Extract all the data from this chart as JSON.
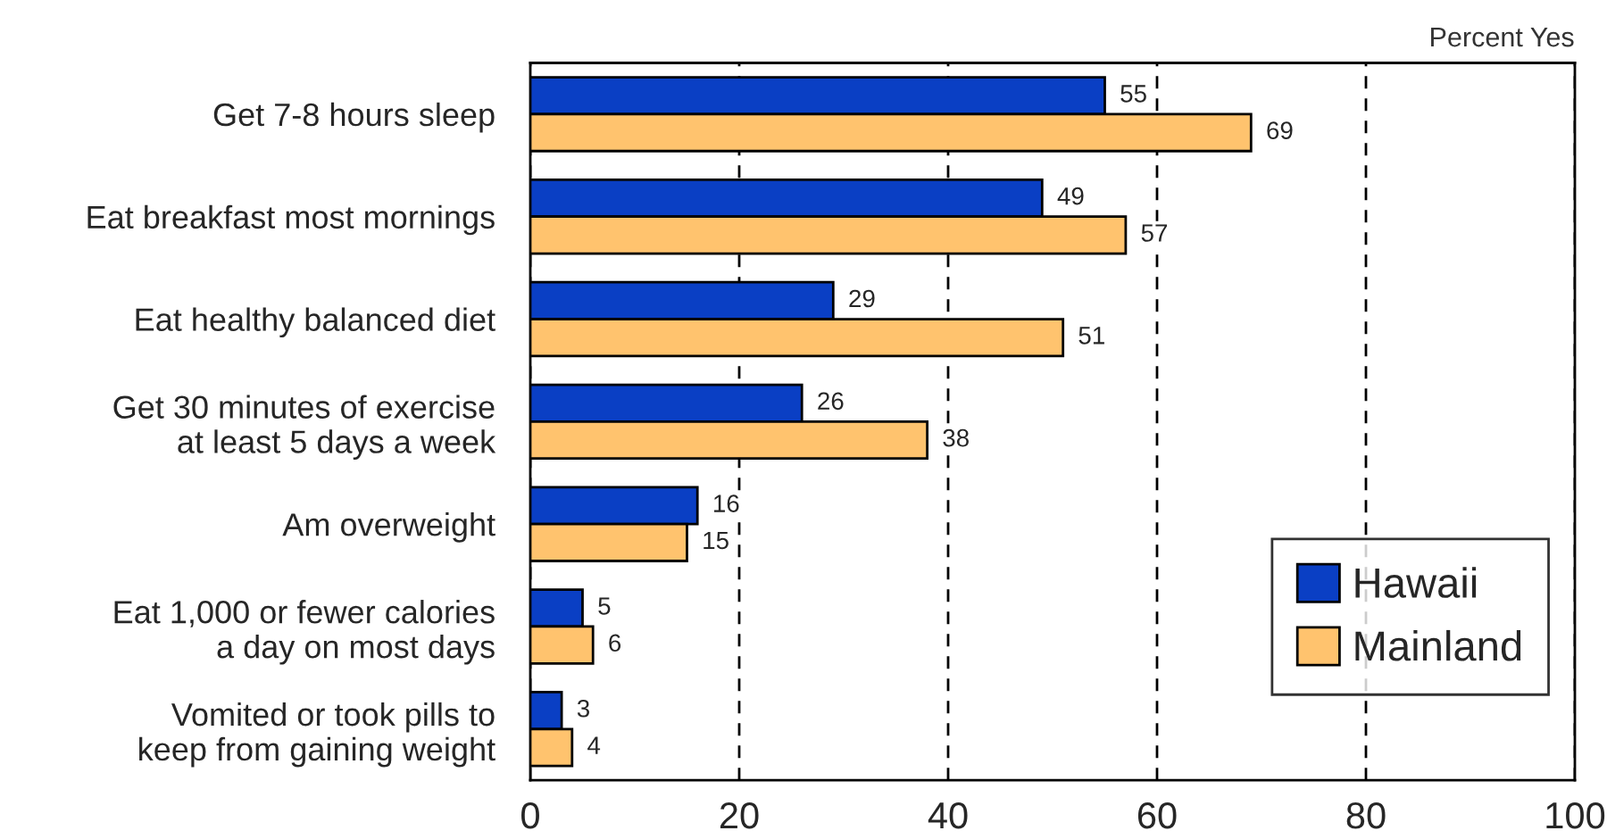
{
  "chart_data": {
    "type": "bar",
    "orientation": "horizontal",
    "categories": [
      "Get 7-8 hours sleep",
      "Eat breakfast most mornings",
      "Eat healthy balanced diet",
      "Get 30 minutes of exercise\nat least 5 days a week",
      "Am overweight",
      "Eat 1,000 or fewer calories\na day on most days",
      "Vomited or took pills to\nkeep from gaining weight"
    ],
    "series": [
      {
        "name": "Hawaii",
        "color": "#0a3fc4",
        "values": [
          55,
          49,
          29,
          26,
          16,
          5,
          3
        ]
      },
      {
        "name": "Mainland",
        "color": "#ffc36e",
        "values": [
          69,
          57,
          51,
          38,
          15,
          6,
          4
        ]
      }
    ],
    "xlim": [
      0,
      100
    ],
    "xticks": [
      0,
      20,
      40,
      60,
      80,
      100
    ],
    "grid": "x",
    "legend": "bottom right",
    "data_labels": true,
    "annotations": [
      "Percent Yes"
    ]
  }
}
